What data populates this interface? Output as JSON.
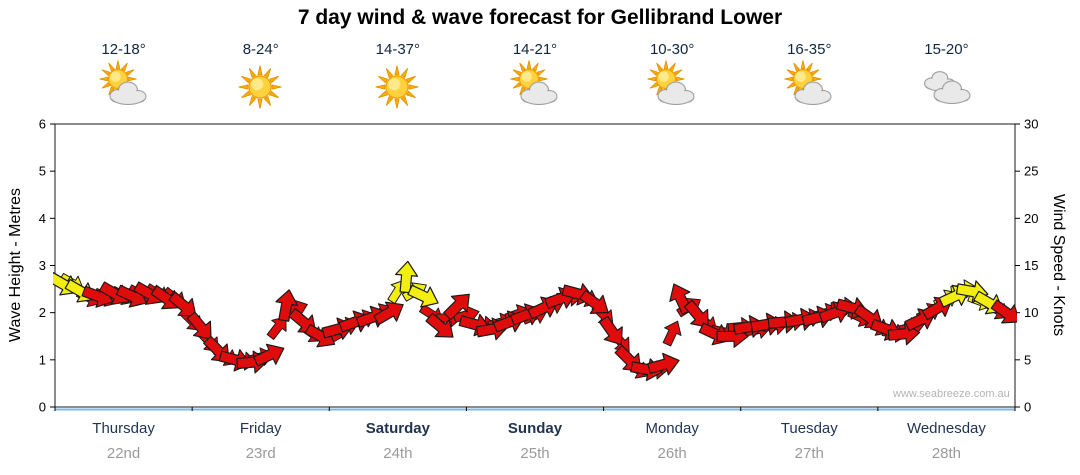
{
  "title": "7 day wind & wave forecast for Gellibrand Lower",
  "watermark": "www.seabreeze.com.au",
  "axes": {
    "left_label": "Wave Height - Metres",
    "right_label": "Wind Speed - Knots"
  },
  "days": [
    {
      "name": "Thursday",
      "date": "22nd",
      "temp": "12-18°",
      "icon": "sun-cloud",
      "bold": false
    },
    {
      "name": "Friday",
      "date": "23rd",
      "temp": "8-24°",
      "icon": "sunny",
      "bold": false
    },
    {
      "name": "Saturday",
      "date": "24th",
      "temp": "14-37°",
      "icon": "sunny",
      "bold": true
    },
    {
      "name": "Sunday",
      "date": "25th",
      "temp": "14-21°",
      "icon": "sun-cloud",
      "bold": true
    },
    {
      "name": "Monday",
      "date": "26th",
      "temp": "10-30°",
      "icon": "sun-cloud",
      "bold": false
    },
    {
      "name": "Tuesday",
      "date": "27th",
      "temp": "16-35°",
      "icon": "sun-cloud",
      "bold": false
    },
    {
      "name": "Wednesday",
      "date": "28th",
      "temp": "15-20°",
      "icon": "cloudy",
      "bold": false
    }
  ],
  "chart_data": {
    "type": "wind-arrow-series",
    "title": "7 day wind & wave forecast for Gellibrand Lower",
    "x_categories": [
      "Thursday 22nd",
      "Friday 23rd",
      "Saturday 24th",
      "Sunday 25th",
      "Monday 26th",
      "Tuesday 27th",
      "Wednesday 28th"
    ],
    "left_axis": {
      "label": "Wave Height - Metres",
      "min": 0,
      "max": 6,
      "step": 1
    },
    "right_axis": {
      "label": "Wind Speed - Knots",
      "min": 0,
      "max": 30,
      "step": 5
    },
    "points_per_day": 8,
    "colors": {
      "red": "#e00c0c",
      "yellow": "#f3ee12",
      "outline": "#1a1a1a",
      "frame": "#1a1a1a",
      "baseline": "#7db9e8"
    },
    "points": [
      {
        "v": 2.6,
        "c": "y",
        "d": -30
      },
      {
        "v": 2.45,
        "c": "y",
        "d": -30
      },
      {
        "v": 2.35,
        "c": "r",
        "d": -20
      },
      {
        "v": 2.4,
        "c": "r",
        "d": -30
      },
      {
        "v": 2.35,
        "c": "r",
        "d": -25
      },
      {
        "v": 2.4,
        "c": "r",
        "d": -30
      },
      {
        "v": 2.3,
        "c": "r",
        "d": -35
      },
      {
        "v": 2.15,
        "c": "r",
        "d": -40
      },
      {
        "v": 1.7,
        "c": "r",
        "d": -50
      },
      {
        "v": 1.2,
        "c": "r",
        "d": -45
      },
      {
        "v": 1.0,
        "c": "r",
        "d": -15
      },
      {
        "v": 0.95,
        "c": "r",
        "d": 5
      },
      {
        "v": 1.1,
        "c": "r",
        "d": 25
      },
      {
        "v": 2.15,
        "c": "r",
        "d": 80
      },
      {
        "v": 1.8,
        "c": "r",
        "d": -40
      },
      {
        "v": 1.5,
        "c": "r",
        "d": -30
      },
      {
        "v": 1.65,
        "c": "r",
        "d": 15
      },
      {
        "v": 1.8,
        "c": "r",
        "d": 20
      },
      {
        "v": 1.9,
        "c": "r",
        "d": 20
      },
      {
        "v": 2.0,
        "c": "r",
        "d": 30
      },
      {
        "v": 2.75,
        "c": "y",
        "d": 85
      },
      {
        "v": 2.35,
        "c": "y",
        "d": -25
      },
      {
        "v": 1.7,
        "c": "r",
        "d": -40
      },
      {
        "v": 2.15,
        "c": "r",
        "d": 45
      },
      {
        "v": 1.75,
        "c": "r",
        "d": -15
      },
      {
        "v": 1.65,
        "c": "r",
        "d": 10
      },
      {
        "v": 1.8,
        "c": "r",
        "d": 20
      },
      {
        "v": 1.95,
        "c": "r",
        "d": 20
      },
      {
        "v": 2.1,
        "c": "r",
        "d": 25
      },
      {
        "v": 2.3,
        "c": "r",
        "d": 20
      },
      {
        "v": 2.4,
        "c": "r",
        "d": -15
      },
      {
        "v": 2.2,
        "c": "r",
        "d": -35
      },
      {
        "v": 1.6,
        "c": "r",
        "d": -55
      },
      {
        "v": 1.0,
        "c": "r",
        "d": -45
      },
      {
        "v": 0.8,
        "c": "r",
        "d": -10
      },
      {
        "v": 0.9,
        "c": "r",
        "d": 15
      },
      {
        "v": 2.3,
        "c": "r",
        "d": 115
      },
      {
        "v": 1.95,
        "c": "r",
        "d": -50
      },
      {
        "v": 1.55,
        "c": "r",
        "d": -25
      },
      {
        "v": 1.5,
        "c": "r",
        "d": 0
      },
      {
        "v": 1.7,
        "c": "r",
        "d": 10
      },
      {
        "v": 1.75,
        "c": "r",
        "d": 10
      },
      {
        "v": 1.8,
        "c": "r",
        "d": 5
      },
      {
        "v": 1.85,
        "c": "r",
        "d": 10
      },
      {
        "v": 1.9,
        "c": "r",
        "d": 15
      },
      {
        "v": 2.0,
        "c": "r",
        "d": 20
      },
      {
        "v": 2.1,
        "c": "r",
        "d": -15
      },
      {
        "v": 1.9,
        "c": "r",
        "d": -35
      },
      {
        "v": 1.65,
        "c": "r",
        "d": -20
      },
      {
        "v": 1.55,
        "c": "r",
        "d": 5
      },
      {
        "v": 1.85,
        "c": "r",
        "d": 25
      },
      {
        "v": 2.1,
        "c": "r",
        "d": 30
      },
      {
        "v": 2.35,
        "c": "y",
        "d": 25
      },
      {
        "v": 2.45,
        "c": "y",
        "d": -10
      },
      {
        "v": 2.2,
        "c": "y",
        "d": -30
      },
      {
        "v": 2.0,
        "c": "r",
        "d": -35
      }
    ]
  }
}
